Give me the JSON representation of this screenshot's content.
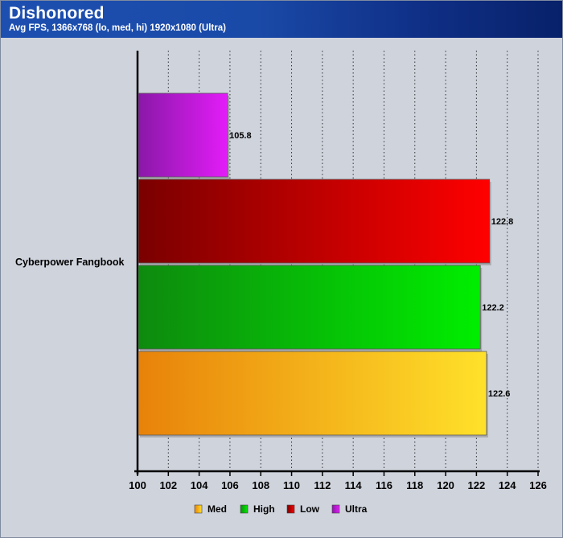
{
  "header": {
    "title": "Dishonored",
    "subtitle": "Avg FPS, 1366x768 (lo, med, hi) 1920x1080 (Ultra)"
  },
  "chart_data": {
    "type": "bar",
    "orientation": "horizontal",
    "title": "Dishonored",
    "subtitle": "Avg FPS, 1366x768 (lo, med, hi) 1920x1080 (Ultra)",
    "categories": [
      "Cyberpower Fangbook"
    ],
    "xlim": [
      100,
      126
    ],
    "xticks": [
      100,
      102,
      104,
      106,
      108,
      110,
      112,
      114,
      116,
      118,
      120,
      122,
      124,
      126
    ],
    "grid": "vertical-dotted",
    "legend_position": "bottom",
    "series_draw_order_top_to_bottom": [
      "Ultra",
      "Low",
      "High",
      "Med"
    ],
    "series": [
      {
        "name": "Med",
        "values": [
          122.6
        ],
        "label": "122.6",
        "color_start": "#e8820a",
        "color_end": "#ffe12a"
      },
      {
        "name": "High",
        "values": [
          122.2
        ],
        "label": "122.2",
        "color_start": "#0e8a0e",
        "color_end": "#00ee00"
      },
      {
        "name": "Low",
        "values": [
          122.8
        ],
        "label": "122.8",
        "color_start": "#7a0000",
        "color_end": "#ff0000"
      },
      {
        "name": "Ultra",
        "values": [
          105.8
        ],
        "label": "105.8",
        "color_start": "#8a18a8",
        "color_end": "#e31cf8"
      }
    ]
  }
}
